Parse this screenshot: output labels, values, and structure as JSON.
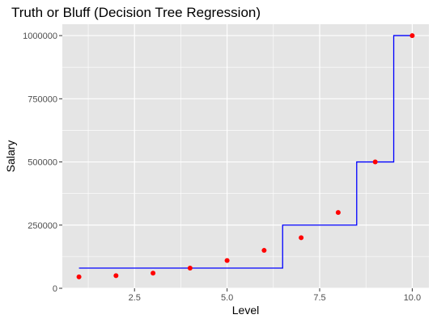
{
  "chart_data": {
    "type": "scatter",
    "title": "Truth or Bluff (Decision Tree Regression)",
    "xlabel": "Level",
    "ylabel": "Salary",
    "xlim": [
      0.55,
      10.45
    ],
    "ylim": [
      0,
      1045000
    ],
    "x_ticks": [
      2.5,
      5.0,
      7.5,
      10.0
    ],
    "x_tick_labels": [
      "2.5",
      "5.0",
      "7.5",
      "10.0"
    ],
    "y_ticks": [
      0,
      250000,
      500000,
      750000,
      1000000
    ],
    "y_tick_labels": [
      "0",
      "250000",
      "500000",
      "750000",
      "1000000"
    ],
    "grid": true,
    "panel_background": "#e5e5e5",
    "grid_color": "#ffffff",
    "series": [
      {
        "kind": "points",
        "color": "#ff0000",
        "x": [
          1,
          2,
          3,
          4,
          5,
          6,
          7,
          8,
          9,
          10
        ],
        "y": [
          45000,
          50000,
          60000,
          80000,
          110000,
          150000,
          200000,
          300000,
          500000,
          1000000
        ]
      },
      {
        "kind": "step-line",
        "color": "#0000ff",
        "x": [
          1,
          6.5,
          6.5,
          8.5,
          8.5,
          9.5,
          9.5,
          10
        ],
        "y": [
          80000,
          80000,
          250000,
          250000,
          500000,
          500000,
          1000000,
          1000000
        ]
      }
    ]
  }
}
